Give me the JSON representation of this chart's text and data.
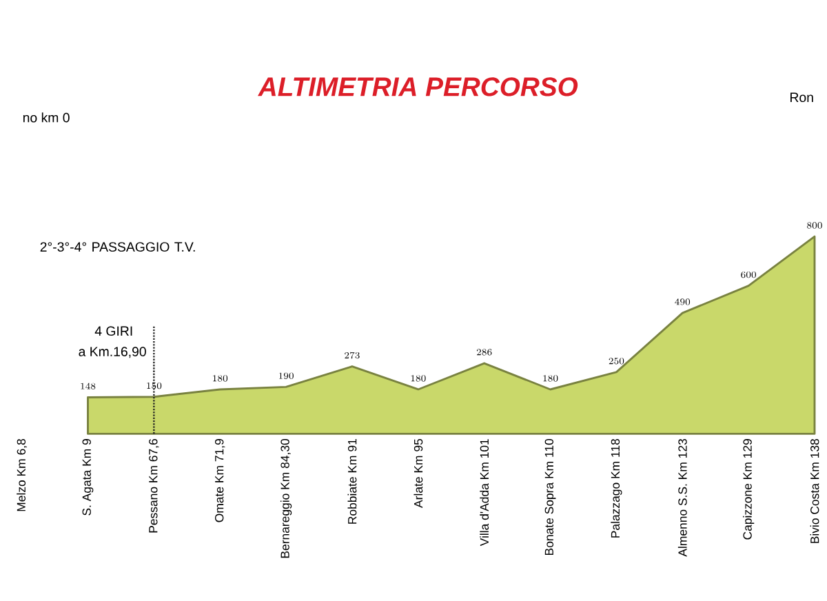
{
  "chart_data": {
    "type": "area",
    "title": "ALTIMETRIA PERCORSO",
    "categories": [
      "Melzo Km 6,8",
      "S. Agata Km 9",
      "Pessano Km 67,6",
      "Omate Km 71,9",
      "Bernareggio Km 84,30",
      "Robbiate Km 91",
      "Arlate Km 95",
      "Villa d'Adda Km 101",
      "Bonate Sopra Km 110",
      "Palazzago Km 118",
      "Almenno S.S. Km 123",
      "Capizzone Km 129",
      "Bivio Costa Km 138"
    ],
    "values": [
      null,
      148,
      150,
      180,
      190,
      273,
      180,
      286,
      180,
      250,
      490,
      600,
      800
    ],
    "color": "#c9d86a",
    "data_labels": true,
    "ref_lines": [
      {
        "axis": "x",
        "value": "Pessano Km 67,6",
        "color": "#222222",
        "line_style": "dotted"
      }
    ],
    "annotations": [
      "no km 0",
      "Ron",
      "2°-3°-4° PASSAGGIO T.V.",
      "4 GIRI",
      "a Km.16,90"
    ]
  }
}
